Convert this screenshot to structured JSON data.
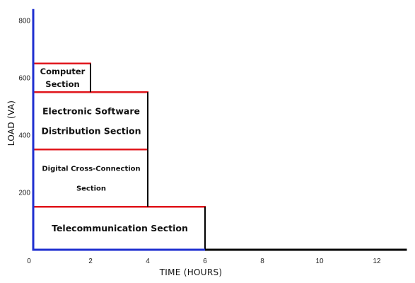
{
  "chart_data": {
    "type": "bar",
    "title": "",
    "xlabel": "TIME (HOURS)",
    "ylabel": "LOAD (VA)",
    "xlim": [
      0,
      13
    ],
    "ylim": [
      0,
      840
    ],
    "x_ticks": [
      0,
      2,
      4,
      6,
      8,
      10,
      12
    ],
    "y_ticks": [
      200,
      400,
      600,
      800
    ],
    "grid": false,
    "stacked": true,
    "segments": [
      {
        "label_lines": [
          "Telecommunication Section"
        ],
        "x_start": 0,
        "x_end": 6,
        "y_bottom": 0,
        "y_top": 150
      },
      {
        "label_lines": [
          "Digital Cross-Connection",
          "Section"
        ],
        "x_start": 0,
        "x_end": 4,
        "y_bottom": 150,
        "y_top": 350
      },
      {
        "label_lines": [
          "Electronic Software",
          "Distribution Section"
        ],
        "x_start": 0,
        "x_end": 4,
        "y_bottom": 350,
        "y_top": 550
      },
      {
        "label_lines": [
          "Computer",
          "Section"
        ],
        "x_start": 0,
        "x_end": 2,
        "y_bottom": 550,
        "y_top": 650
      }
    ],
    "colors": {
      "y_axis": "#1f2fd0",
      "x_axis_inside": "#1f2fd0",
      "x_axis_outside": "#000000",
      "segment_top": "#e0161c",
      "segment_right": "#000000"
    }
  }
}
